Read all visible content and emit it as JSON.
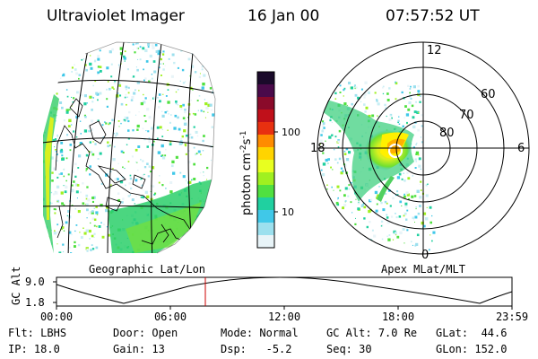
{
  "header": {
    "instrument": "Ultraviolet Imager",
    "date": "16 Jan 00",
    "time": "07:57:52 UT"
  },
  "left_panel": {
    "caption": "Geographic Lat/Lon"
  },
  "right_panel": {
    "caption": "Apex MLat/MLT",
    "mlt_labels": [
      "12",
      "18",
      "6",
      "0"
    ],
    "lat_labels": [
      "60",
      "70",
      "80"
    ]
  },
  "colorbar": {
    "axis_label": "photon cm",
    "exp1": "-2",
    "mid": "s",
    "exp2": "-1",
    "ticks": [
      "100",
      "10"
    ],
    "colors": [
      "#1a0a2a",
      "#4a0a4a",
      "#8a0a2a",
      "#c0101a",
      "#e83010",
      "#ff8c00",
      "#ffd400",
      "#e8ff20",
      "#a0f020",
      "#50e040",
      "#20d0a0",
      "#40c8e8",
      "#9ce0ee",
      "#e8f4f8"
    ]
  },
  "timeline": {
    "ylabel": "GC Alt",
    "y_ticks": [
      "9.0",
      "1.8"
    ],
    "x_ticks": [
      "00:00",
      "06:00",
      "12:00",
      "18:00",
      "23:59"
    ],
    "marker_color": "#cc0000"
  },
  "status": {
    "row1": [
      {
        "label": "Flt:",
        "value": "LBHS"
      },
      {
        "label": "Door:",
        "value": "Open"
      },
      {
        "label": "Mode:",
        "value": "Normal"
      },
      {
        "label": "GC Alt:",
        "value": "7.0 Re"
      },
      {
        "label": "GLat:",
        "value": "44.6"
      }
    ],
    "row2": [
      {
        "label": "IP:",
        "value": "18.0"
      },
      {
        "label": "Gain:",
        "value": "13"
      },
      {
        "label": "Dsp:",
        "value": "-5.2"
      },
      {
        "label": "Seq:",
        "value": "30"
      },
      {
        "label": "GLon:",
        "value": "152.0"
      }
    ]
  }
}
